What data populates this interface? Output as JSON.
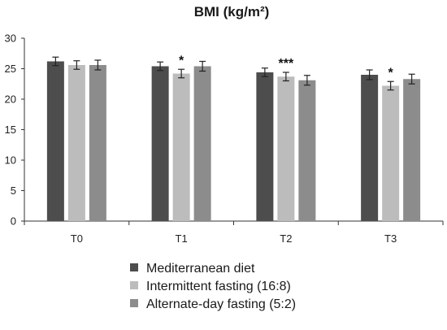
{
  "chart_data": {
    "type": "bar",
    "title": "BMI (kg/m²)",
    "xlabel": "",
    "ylabel": "",
    "ylim": [
      0,
      30
    ],
    "yticks": [
      0,
      5,
      10,
      15,
      20,
      25,
      30
    ],
    "grid": false,
    "legend_position": "bottom",
    "categories": [
      "T0",
      "T1",
      "T2",
      "T3"
    ],
    "series": [
      {
        "name": "Mediterranean diet",
        "color": "#4d4d4d",
        "values": [
          26.2,
          25.4,
          24.4,
          24.0
        ],
        "errors": [
          0.7,
          0.7,
          0.7,
          0.8
        ]
      },
      {
        "name": "Intermittent fasting (16:8)",
        "color": "#bcbcbc",
        "values": [
          25.6,
          24.2,
          23.7,
          22.2
        ],
        "errors": [
          0.7,
          0.7,
          0.7,
          0.7
        ]
      },
      {
        "name": "Alternate-day fasting (5:2)",
        "color": "#8c8c8c",
        "values": [
          25.6,
          25.4,
          23.1,
          23.3
        ],
        "errors": [
          0.8,
          0.8,
          0.8,
          0.8
        ]
      }
    ],
    "annotations": [
      {
        "category": "T1",
        "series": 1,
        "text": "*"
      },
      {
        "category": "T2",
        "series": 1,
        "text": "***"
      },
      {
        "category": "T3",
        "series": 1,
        "text": "*"
      }
    ]
  }
}
